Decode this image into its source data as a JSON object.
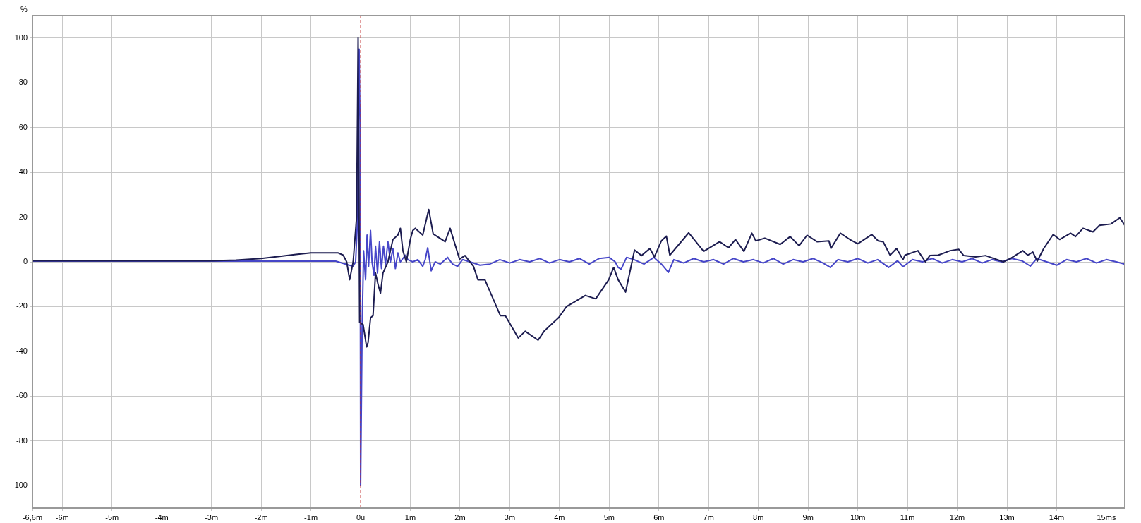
{
  "chart_data": {
    "type": "line",
    "ylabel": "%",
    "xlim": [
      -6.6,
      15.37
    ],
    "ylim": [
      -110,
      110
    ],
    "xticks": [
      {
        "value": -6.6,
        "label": "-6,6m"
      },
      {
        "value": -6,
        "label": "-6m"
      },
      {
        "value": -5,
        "label": "-5m"
      },
      {
        "value": -4,
        "label": "-4m"
      },
      {
        "value": -3,
        "label": "-3m"
      },
      {
        "value": -2,
        "label": "-2m"
      },
      {
        "value": -1,
        "label": "-1m"
      },
      {
        "value": 0,
        "label": "0u"
      },
      {
        "value": 1,
        "label": "1m"
      },
      {
        "value": 2,
        "label": "2m"
      },
      {
        "value": 3,
        "label": "3m"
      },
      {
        "value": 4,
        "label": "4m"
      },
      {
        "value": 5,
        "label": "5m"
      },
      {
        "value": 6,
        "label": "6m"
      },
      {
        "value": 7,
        "label": "7m"
      },
      {
        "value": 8,
        "label": "8m"
      },
      {
        "value": 9,
        "label": "9m"
      },
      {
        "value": 10,
        "label": "10m"
      },
      {
        "value": 11,
        "label": "11m"
      },
      {
        "value": 12,
        "label": "12m"
      },
      {
        "value": 13,
        "label": "13m"
      },
      {
        "value": 14,
        "label": "14m"
      },
      {
        "value": 15,
        "label": "15ms"
      }
    ],
    "yticks": [
      -100,
      -80,
      -60,
      -40,
      -20,
      0,
      20,
      40,
      60,
      80,
      100
    ],
    "grid": true,
    "legend": false,
    "line_style": "solid",
    "ref_lines": [
      {
        "axis": "x",
        "value": 0,
        "color": "#c03030",
        "line_style": "dashed"
      }
    ],
    "series": [
      {
        "color": "#1c1c50",
        "x": [
          -6.6,
          -5,
          -4,
          -3,
          -2.5,
          -2,
          -1.6,
          -1.3,
          -1,
          -0.7,
          -0.45,
          -0.35,
          -0.28,
          -0.22,
          -0.15,
          -0.08,
          -0.05,
          -0.02,
          0.05,
          0.1,
          0.12,
          0.15,
          0.2,
          0.25,
          0.3,
          0.35,
          0.4,
          0.45,
          0.55,
          0.6,
          0.65,
          0.75,
          0.8,
          0.85,
          0.92,
          1,
          1.05,
          1.1,
          1.25,
          1.37,
          1.46,
          1.7,
          1.8,
          1.99,
          2.1,
          2.27,
          2.36,
          2.5,
          2.81,
          2.91,
          3.17,
          3.31,
          3.57,
          3.69,
          3.98,
          4.14,
          4.33,
          4.52,
          4.73,
          4.99,
          5.09,
          5.18,
          5.33,
          5.51,
          5.65,
          5.82,
          5.91,
          6.05,
          6.15,
          6.22,
          6.6,
          6.9,
          7.22,
          7.4,
          7.54,
          7.71,
          7.87,
          7.95,
          8.13,
          8.44,
          8.64,
          8.82,
          8.98,
          9.18,
          9.42,
          9.46,
          9.65,
          9.84,
          10,
          10.28,
          10.41,
          10.51,
          10.65,
          10.78,
          10.91,
          10.95,
          11.21,
          11.36,
          11.45,
          11.62,
          11.86,
          12.03,
          12.13,
          12.37,
          12.57,
          12.93,
          13.08,
          13.32,
          13.42,
          13.52,
          13.61,
          13.74,
          13.93,
          14.06,
          14.28,
          14.38,
          14.53,
          14.73,
          14.86,
          15.09,
          15.27,
          15.37
        ],
        "values": [
          0.5,
          0.5,
          0.5,
          0.5,
          0.8,
          1.5,
          2.5,
          3.3,
          4,
          4,
          4,
          3,
          0,
          -8,
          0,
          20,
          100,
          -27,
          -28,
          -35,
          -38,
          -36,
          -25,
          -24,
          -5,
          -10,
          -14,
          -5,
          0,
          5,
          10,
          12,
          15,
          5,
          0,
          10,
          14,
          15,
          12,
          23.4,
          12.5,
          9,
          15,
          1.2,
          2.8,
          -2,
          -8,
          -8,
          -24,
          -24,
          -34,
          -31,
          -35,
          -31,
          -25,
          -20,
          -17.5,
          -15,
          -16.5,
          -8,
          -2.5,
          -8,
          -13.5,
          5.3,
          2.8,
          6,
          2.2,
          9.4,
          11.5,
          3,
          13,
          4.7,
          9,
          6.3,
          10,
          4.7,
          12.8,
          9.4,
          10.6,
          7.8,
          11.3,
          7.2,
          11.9,
          9,
          9.4,
          6,
          12.8,
          10,
          8.1,
          12.2,
          9.4,
          9,
          3,
          6,
          1,
          3,
          5,
          0,
          2.8,
          3,
          5,
          5.6,
          2.8,
          2.2,
          2.8,
          0,
          1.6,
          5,
          3,
          4.4,
          0.3,
          6,
          12.2,
          10,
          12.8,
          11.3,
          15,
          13.4,
          16.3,
          16.9,
          19.7,
          16.3
        ]
      },
      {
        "color": "#4646c8",
        "x": [
          -6.6,
          -4,
          -2,
          -1,
          -0.5,
          -0.3,
          -0.15,
          -0.1,
          -0.06,
          -0.03,
          -0.01,
          0,
          0.03,
          0.06,
          0.1,
          0.13,
          0.16,
          0.2,
          0.23,
          0.27,
          0.3,
          0.34,
          0.38,
          0.42,
          0.46,
          0.5,
          0.55,
          0.6,
          0.65,
          0.7,
          0.75,
          0.8,
          0.9,
          0.95,
          1.05,
          1.15,
          1.25,
          1.3,
          1.35,
          1.42,
          1.5,
          1.6,
          1.75,
          1.85,
          1.95,
          2.05,
          2.2,
          2.4,
          2.6,
          2.8,
          3,
          3.2,
          3.4,
          3.6,
          3.8,
          4,
          4.2,
          4.4,
          4.6,
          4.8,
          5,
          5.12,
          5.18,
          5.24,
          5.35,
          5.5,
          5.7,
          5.9,
          6.05,
          6.19,
          6.3,
          6.5,
          6.7,
          6.9,
          7.1,
          7.3,
          7.5,
          7.7,
          7.9,
          8.1,
          8.3,
          8.5,
          8.7,
          8.9,
          9.1,
          9.3,
          9.45,
          9.6,
          9.8,
          10,
          10.2,
          10.4,
          10.62,
          10.8,
          10.91,
          11.1,
          11.3,
          11.5,
          11.7,
          11.9,
          12.1,
          12.3,
          12.5,
          12.7,
          12.9,
          13.1,
          13.3,
          13.47,
          13.6,
          13.8,
          14,
          14.2,
          14.4,
          14.6,
          14.8,
          15,
          15.2,
          15.37
        ],
        "values": [
          0.3,
          0.3,
          0.3,
          0.3,
          0.3,
          -1,
          -2,
          0,
          20,
          95,
          60,
          -100,
          -30,
          5,
          -8,
          12,
          -2,
          14,
          0,
          -6,
          7,
          -5,
          9,
          -3,
          7,
          -1,
          9,
          0,
          6,
          -3,
          4,
          0,
          3,
          1,
          0,
          1,
          -2,
          1,
          6.3,
          -4,
          0,
          -1,
          2,
          -1,
          -2,
          1,
          0,
          -1.5,
          -1,
          1,
          -0.5,
          1,
          0,
          1.5,
          -0.5,
          1,
          0,
          1.5,
          -1,
          1.5,
          2,
          0,
          -2.5,
          -3.3,
          2,
          1,
          -1,
          2,
          -1,
          -4.7,
          1,
          -0.5,
          1.5,
          0,
          1,
          -1,
          1.5,
          0,
          1,
          -0.5,
          1.5,
          -1,
          1,
          0,
          1.5,
          -0.5,
          -2.5,
          1,
          0,
          1.5,
          -0.5,
          1,
          -2.5,
          0.5,
          -2.2,
          1,
          0,
          1.5,
          -0.5,
          1,
          0,
          1.5,
          -0.5,
          1,
          0,
          1.5,
          0.5,
          -1.9,
          1.5,
          0,
          -1.5,
          1,
          0,
          1.5,
          -0.5,
          1,
          0,
          -1
        ]
      }
    ]
  }
}
